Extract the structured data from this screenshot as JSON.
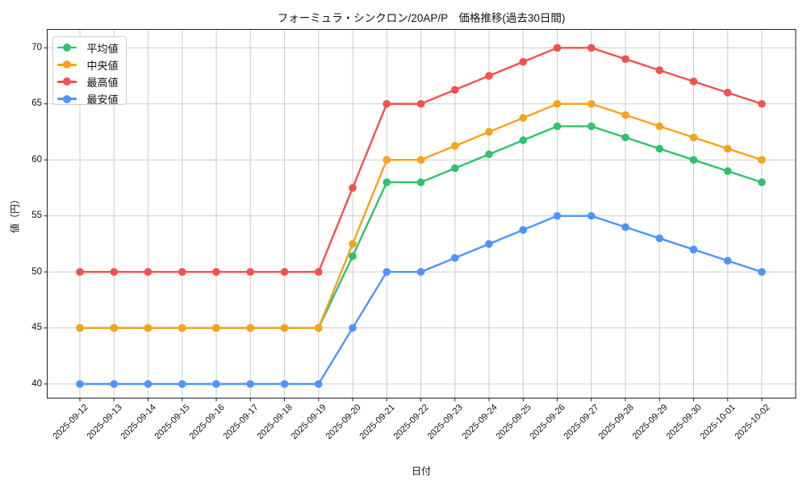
{
  "title": "フォーミュラ・シンクロン/20AP/P　価格推移(過去30日間)",
  "chart_data": {
    "type": "line",
    "title": "フォーミュラ・シンクロン/20AP/P　価格推移(過去30日間)",
    "x_label": "日付",
    "y_label": "値（円）",
    "grid": true,
    "legend_position": "upper-left",
    "marker": "circle",
    "y_ticks": [
      40,
      45,
      50,
      55,
      60,
      65,
      70
    ],
    "y_lim": [
      38.4,
      71.6
    ],
    "x": [
      "2025-09-12",
      "2025-09-13",
      "2025-09-14",
      "2025-09-15",
      "2025-09-16",
      "2025-09-17",
      "2025-09-18",
      "2025-09-19",
      "2025-09-20",
      "2025-09-21",
      "2025-09-22",
      "2025-09-23",
      "2025-09-24",
      "2025-09-25",
      "2025-09-26",
      "2025-09-27",
      "2025-09-28",
      "2025-09-29",
      "2025-09-30",
      "2025-10-01",
      "2025-10-02"
    ],
    "series": [
      {
        "key": "mean",
        "name": "平均値",
        "color": "#2dc36e",
        "values": [
          45,
          45,
          45,
          45,
          45,
          45,
          45,
          45,
          51.4,
          58,
          58,
          59.25,
          60.5,
          61.75,
          63,
          63,
          62,
          61,
          60,
          59,
          58
        ]
      },
      {
        "key": "median",
        "name": "中央値",
        "color": "#f9a21b",
        "values": [
          45,
          45,
          45,
          45,
          45,
          45,
          45,
          45,
          52.5,
          60,
          60,
          61.25,
          62.5,
          63.75,
          65,
          65,
          64,
          63,
          62,
          61,
          60
        ]
      },
      {
        "key": "max",
        "name": "最高値",
        "color": "#f4504e",
        "values": [
          50,
          50,
          50,
          50,
          50,
          50,
          50,
          50,
          57.5,
          65,
          65,
          66.25,
          67.5,
          68.75,
          70,
          70,
          69,
          68,
          67,
          66,
          65
        ]
      },
      {
        "key": "min",
        "name": "最安値",
        "color": "#4d94ff",
        "values": [
          40,
          40,
          40,
          40,
          40,
          40,
          40,
          40,
          45,
          50,
          50,
          51.25,
          52.5,
          53.75,
          55,
          55,
          54,
          53,
          52,
          51,
          50
        ]
      }
    ],
    "colors": {
      "grid": "#cccccc",
      "spine": "#1f1f1f",
      "background": "#ffffff"
    }
  }
}
